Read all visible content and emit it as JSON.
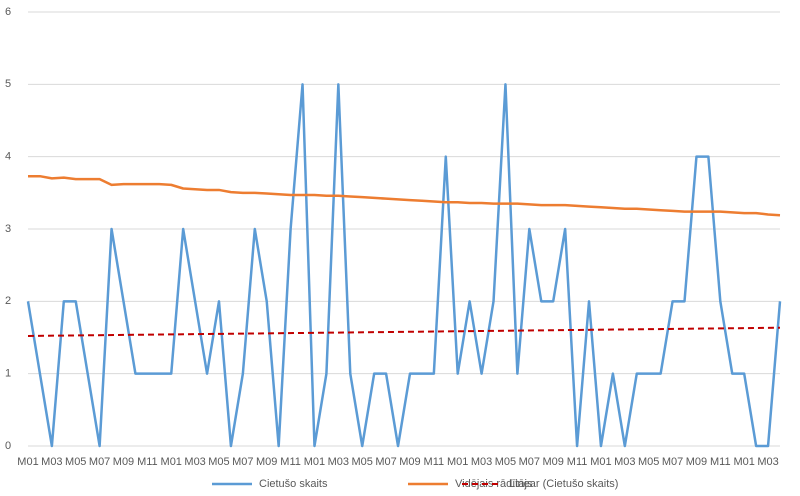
{
  "chart_data": {
    "type": "line",
    "categories": [
      "M01",
      null,
      "M03",
      null,
      "M05",
      null,
      "M07",
      null,
      "M09",
      null,
      "M11",
      null,
      "M01",
      null,
      "M03",
      null,
      "M05",
      null,
      "M07",
      null,
      "M09",
      null,
      "M11",
      null,
      "M01",
      null,
      "M03",
      null,
      "M05",
      null,
      "M07",
      null,
      "M09",
      null,
      "M11",
      null,
      "M01",
      null,
      "M03",
      null,
      "M05",
      null,
      "M07",
      null,
      "M09",
      null,
      "M11",
      null,
      "M01",
      null,
      "M03",
      null,
      "M05",
      null,
      "M07",
      null,
      "M09",
      null,
      "M11",
      null,
      "M01",
      null,
      "M03",
      null
    ],
    "series": [
      {
        "name": "Cietušo skaits",
        "color": "#5b9bd5",
        "values": [
          2,
          1,
          0,
          2,
          2,
          1,
          0,
          3,
          2,
          1,
          1,
          1,
          1,
          3,
          2,
          1,
          2,
          0,
          1,
          3,
          2,
          0,
          3,
          5,
          0,
          1,
          5,
          1,
          0,
          1,
          1,
          0,
          1,
          1,
          1,
          4,
          1,
          2,
          1,
          2,
          5,
          1,
          3,
          2,
          2,
          3,
          0,
          2,
          0,
          1,
          0,
          1,
          1,
          1,
          2,
          2,
          4,
          4,
          2,
          1,
          1,
          0,
          0,
          2
        ]
      },
      {
        "name": "Vidējais rādītājs",
        "color": "#ed7d31",
        "values": [
          3.73,
          3.73,
          3.7,
          3.71,
          3.69,
          3.69,
          3.69,
          3.61,
          3.62,
          3.62,
          3.62,
          3.62,
          3.61,
          3.56,
          3.55,
          3.54,
          3.54,
          3.51,
          3.5,
          3.5,
          3.49,
          3.48,
          3.47,
          3.47,
          3.47,
          3.46,
          3.46,
          3.45,
          3.44,
          3.43,
          3.42,
          3.41,
          3.4,
          3.39,
          3.38,
          3.37,
          3.37,
          3.36,
          3.36,
          3.35,
          3.35,
          3.35,
          3.34,
          3.33,
          3.33,
          3.33,
          3.32,
          3.31,
          3.3,
          3.29,
          3.28,
          3.28,
          3.27,
          3.26,
          3.25,
          3.24,
          3.24,
          3.24,
          3.24,
          3.23,
          3.22,
          3.22,
          3.2,
          3.19
        ]
      },
      {
        "name": "Linear (Cietušo skaits)",
        "color": "#c00000",
        "trendline": "linear"
      }
    ],
    "ylim": [
      0,
      6
    ],
    "yticks": [
      0,
      1,
      2,
      3,
      4,
      5,
      6
    ],
    "grid": true,
    "legend": "bottom"
  }
}
